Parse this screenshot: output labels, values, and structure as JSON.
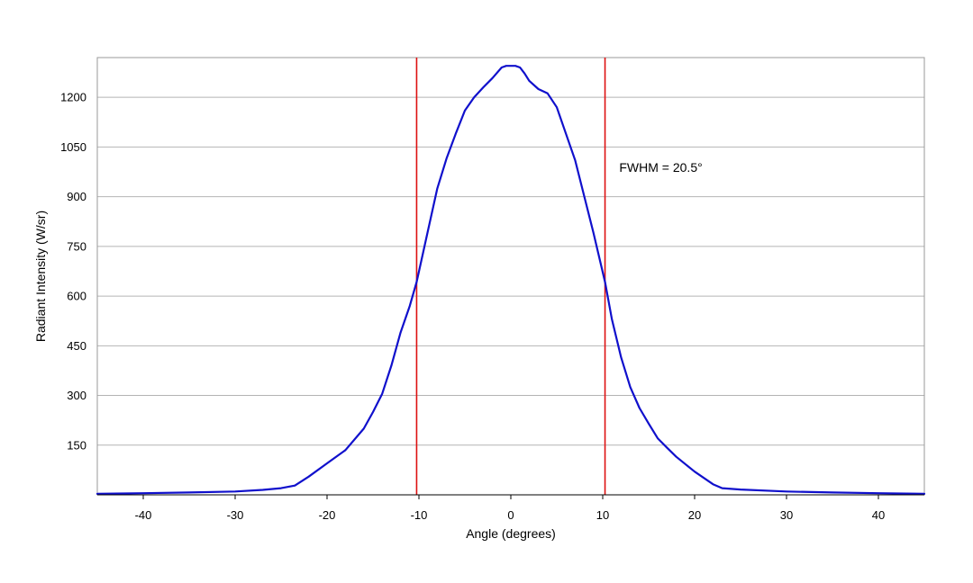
{
  "chart_data": {
    "type": "line",
    "title": "",
    "xlabel": "Angle (degrees)",
    "ylabel": "Radiant Intensity (W/sr)",
    "xlim": [
      -45,
      45
    ],
    "ylim": [
      0,
      1320
    ],
    "xticks": [
      -40,
      -30,
      -20,
      -10,
      0,
      10,
      20,
      30,
      40
    ],
    "xtick_labels": [
      "-40",
      "-30",
      "-20",
      "-10",
      "0",
      "10",
      "20",
      "30",
      "40"
    ],
    "yticks": [
      150,
      300,
      450,
      600,
      750,
      900,
      1050,
      1200
    ],
    "ytick_labels": [
      "150",
      "300",
      "450",
      "600",
      "750",
      "900",
      "1050",
      "1200"
    ],
    "grid": "horizontal",
    "legend": "none",
    "series": [
      {
        "color": "#1010cc",
        "x": [
          -45,
          -40,
          -35,
          -30,
          -27,
          -25,
          -23.5,
          -22,
          -20,
          -18,
          -16,
          -15,
          -14,
          -13,
          -12,
          -11,
          -10.25,
          -9,
          -8,
          -7,
          -6,
          -5,
          -4,
          -3,
          -2,
          -1,
          -0.5,
          0,
          0.5,
          1,
          1.5,
          2,
          3,
          4,
          5,
          6,
          7,
          8,
          9,
          10.25,
          11,
          12,
          13,
          14,
          15,
          16,
          17,
          18,
          20,
          22,
          23,
          25,
          30,
          35,
          40,
          45
        ],
        "y": [
          3,
          5,
          7,
          10,
          15,
          20,
          28,
          55,
          95,
          135,
          200,
          250,
          305,
          390,
          490,
          570,
          642,
          800,
          925,
          1015,
          1090,
          1160,
          1200,
          1230,
          1258,
          1290,
          1295,
          1295,
          1295,
          1290,
          1272,
          1250,
          1225,
          1212,
          1170,
          1090,
          1010,
          900,
          790,
          642,
          530,
          415,
          325,
          262,
          215,
          170,
          142,
          115,
          70,
          32,
          20,
          16,
          10,
          7,
          5,
          3
        ]
      }
    ],
    "vertical_lines": [
      {
        "x": -10.25,
        "color": "#dd1111"
      },
      {
        "x": 10.25,
        "color": "#dd1111"
      }
    ],
    "annotations": [
      {
        "text": "FWHM = 20.5°",
        "x": 11.8,
        "y": 975
      }
    ]
  }
}
